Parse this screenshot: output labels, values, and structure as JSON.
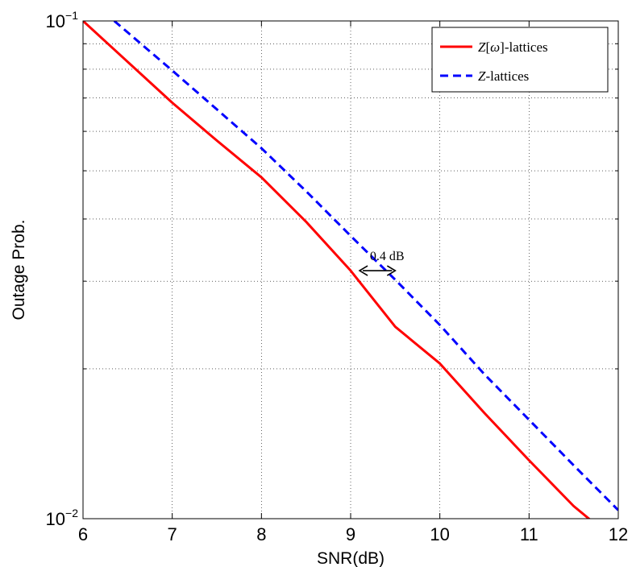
{
  "chart_data": {
    "type": "line",
    "title": "",
    "xlabel": "SNR(dB)",
    "ylabel": "Outage Prob.",
    "xlim": [
      6,
      12
    ],
    "ylim": [
      0.01,
      0.1
    ],
    "y_scale": "log",
    "grid": true,
    "x_ticks": [
      "6",
      "7",
      "8",
      "9",
      "10",
      "11",
      "12"
    ],
    "y_ticks": [
      {
        "base": "10",
        "exp": "−1",
        "value": 0.1
      },
      {
        "base": "10",
        "exp": "−2",
        "value": 0.01
      }
    ],
    "legend_position": "top-right",
    "series": [
      {
        "name_parts": [
          "Z",
          "[",
          "ω",
          "]-lattices"
        ],
        "color": "#ff0000",
        "style": "solid",
        "x": [
          6,
          7,
          7.5,
          8,
          8.5,
          9,
          9.5,
          10,
          10.5,
          11,
          11.5,
          11.7
        ],
        "y": [
          0.1,
          0.0685,
          0.0575,
          0.0485,
          0.0395,
          0.0315,
          0.0243,
          0.0205,
          0.0163,
          0.0131,
          0.0106,
          0.0099
        ]
      },
      {
        "name_parts": [
          "Z",
          "-lattices"
        ],
        "color": "#0000ff",
        "style": "dashed",
        "x": [
          6.35,
          7,
          8,
          8.5,
          9,
          9.5,
          10,
          10.5,
          11,
          11.5,
          12
        ],
        "y": [
          0.1,
          0.0795,
          0.0555,
          0.0455,
          0.037,
          0.0302,
          0.0245,
          0.0195,
          0.0158,
          0.0128,
          0.0104
        ]
      }
    ],
    "annotations": [
      {
        "text": "0.4 dB",
        "arrow_x": [
          9.1,
          9.5
        ],
        "arrow_y": 0.0315
      }
    ]
  }
}
